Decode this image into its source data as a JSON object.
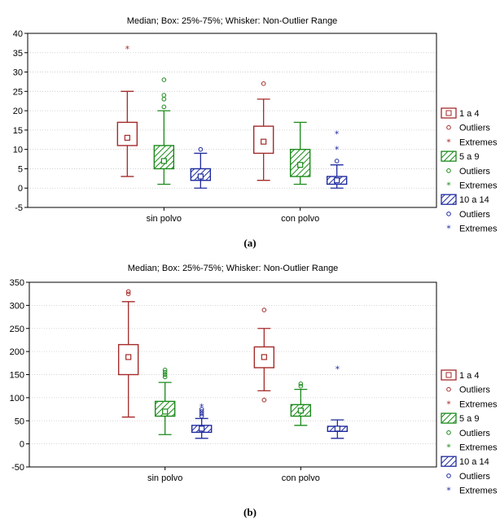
{
  "captions": {
    "a": "(a)",
    "b": "(b)"
  },
  "chart_data": [
    {
      "type": "boxplot",
      "title": "Median; Box: 25%-75%; Whisker: Non-Outlier Range",
      "categories": [
        "sin polvo",
        "con polvo"
      ],
      "ylim": [
        -5,
        40
      ],
      "yticks": [
        -5,
        0,
        5,
        10,
        15,
        20,
        25,
        30,
        35,
        40
      ],
      "grid": true,
      "legend_position": "right",
      "series": [
        {
          "name": "1 a 4",
          "color": "#a52a2a",
          "fill": "none",
          "boxes": [
            {
              "category": "sin polvo",
              "median": 13,
              "q1": 11,
              "q3": 17,
              "whisker_low": 3,
              "whisker_high": 25,
              "outliers": [],
              "extremes": [
                36
              ]
            },
            {
              "category": "con polvo",
              "median": 12,
              "q1": 9,
              "q3": 16,
              "whisker_low": 2,
              "whisker_high": 23,
              "outliers": [
                27
              ],
              "extremes": []
            }
          ]
        },
        {
          "name": "5 a 9",
          "color": "#1a8a1a",
          "fill": "hatch",
          "boxes": [
            {
              "category": "sin polvo",
              "median": 7,
              "q1": 5,
              "q3": 11,
              "whisker_low": 1,
              "whisker_high": 20,
              "outliers": [
                21,
                23,
                24,
                28
              ],
              "extremes": []
            },
            {
              "category": "con polvo",
              "median": 6,
              "q1": 3,
              "q3": 10,
              "whisker_low": 1,
              "whisker_high": 17,
              "outliers": [],
              "extremes": []
            }
          ]
        },
        {
          "name": "10 a 14",
          "color": "#1f2b9e",
          "fill": "hatch",
          "boxes": [
            {
              "category": "sin polvo",
              "median": 3,
              "q1": 2,
              "q3": 5,
              "whisker_low": 0,
              "whisker_high": 9,
              "outliers": [
                10
              ],
              "extremes": []
            },
            {
              "category": "con polvo",
              "median": 2,
              "q1": 1,
              "q3": 3,
              "whisker_low": 0,
              "whisker_high": 6,
              "outliers": [
                7
              ],
              "extremes": [
                10,
                14
              ]
            }
          ]
        }
      ],
      "legend": [
        "1 a 4",
        "Outliers",
        "Extremes",
        "5 a 9",
        "Outliers",
        "Extremes",
        "10 a 14",
        "Outliers",
        "Extremes"
      ]
    },
    {
      "type": "boxplot",
      "title": "Median; Box: 25%-75%; Whisker: Non-Outlier Range",
      "categories": [
        "sin polvo",
        "con polvo"
      ],
      "ylim": [
        -50,
        350
      ],
      "yticks": [
        -50,
        0,
        50,
        100,
        150,
        200,
        250,
        300,
        350
      ],
      "grid": true,
      "legend_position": "right",
      "series": [
        {
          "name": "1 a 4",
          "color": "#a52a2a",
          "fill": "none",
          "boxes": [
            {
              "category": "sin polvo",
              "median": 188,
              "q1": 150,
              "q3": 215,
              "whisker_low": 58,
              "whisker_high": 308,
              "outliers": [
                325,
                330
              ],
              "extremes": []
            },
            {
              "category": "con polvo",
              "median": 188,
              "q1": 165,
              "q3": 210,
              "whisker_low": 115,
              "whisker_high": 250,
              "outliers": [
                95,
                290
              ],
              "extremes": []
            }
          ]
        },
        {
          "name": "5 a 9",
          "color": "#1a8a1a",
          "fill": "hatch",
          "boxes": [
            {
              "category": "sin polvo",
              "median": 70,
              "q1": 60,
              "q3": 92,
              "whisker_low": 20,
              "whisker_high": 133,
              "outliers": [
                145,
                150,
                155,
                160
              ],
              "extremes": []
            },
            {
              "category": "con polvo",
              "median": 72,
              "q1": 60,
              "q3": 85,
              "whisker_low": 40,
              "whisker_high": 118,
              "outliers": [
                125,
                130
              ],
              "extremes": []
            }
          ]
        },
        {
          "name": "10 a 14",
          "color": "#1f2b9e",
          "fill": "hatch",
          "boxes": [
            {
              "category": "sin polvo",
              "median": 33,
              "q1": 25,
              "q3": 40,
              "whisker_low": 12,
              "whisker_high": 55,
              "outliers": [
                60,
                65,
                70,
                75
              ],
              "extremes": [
                80
              ]
            },
            {
              "category": "con polvo",
              "median": 33,
              "q1": 27,
              "q3": 38,
              "whisker_low": 12,
              "whisker_high": 52,
              "outliers": [],
              "extremes": [
                162
              ]
            }
          ]
        }
      ],
      "legend": [
        "1 a 4",
        "Outliers",
        "Extremes",
        "5 a 9",
        "Outliers",
        "Extremes",
        "10 a 14",
        "Outliers",
        "Extremes"
      ]
    }
  ]
}
